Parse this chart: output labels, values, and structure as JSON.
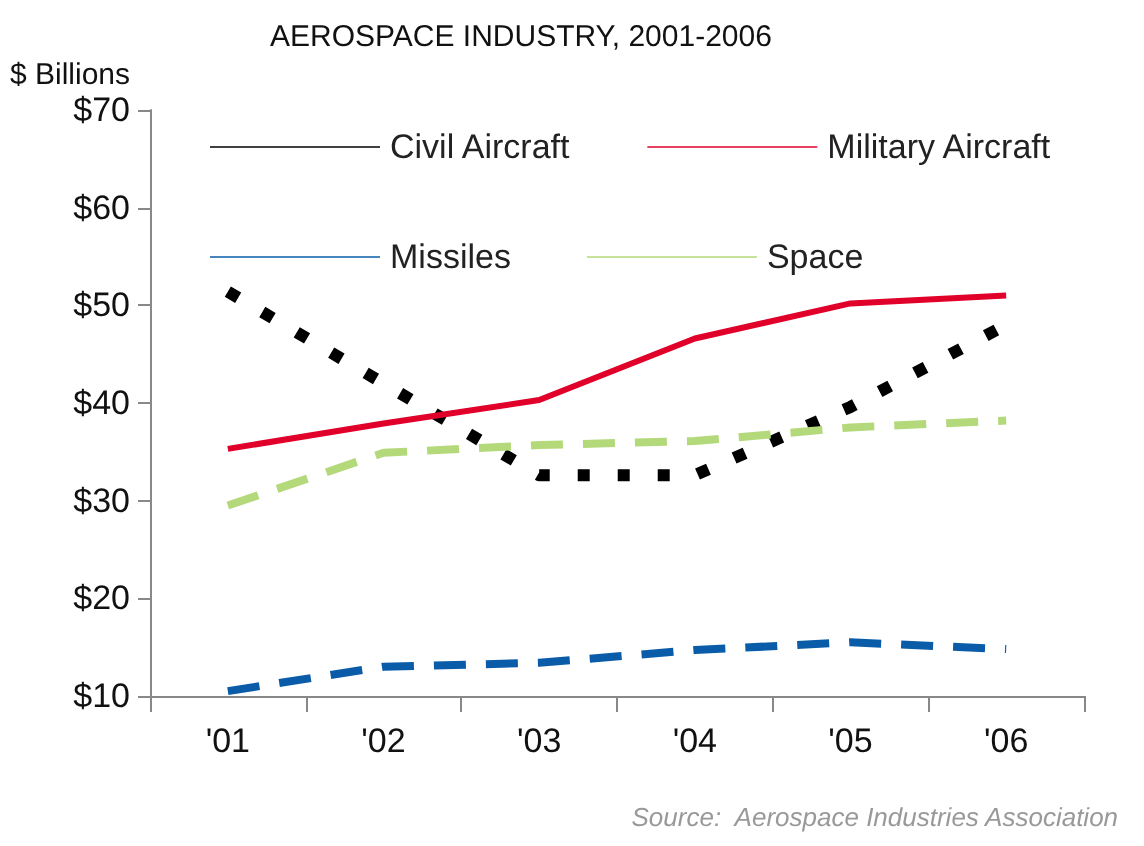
{
  "chart_data": {
    "type": "line",
    "title": "AEROSPACE INDUSTRY, 2001-2006",
    "ylabel": "$ Billions",
    "categories": [
      "'01",
      "'02",
      "'03",
      "'04",
      "'05",
      "'06"
    ],
    "series": [
      {
        "name": "Civil Aircraft",
        "color": "#000000",
        "line_style": "dotted",
        "values": [
          51.4,
          42,
          32.6,
          32.6,
          39.6,
          48
        ]
      },
      {
        "name": "Military Aircraft",
        "color": "#e0002a",
        "line_style": "solid",
        "values": [
          35.3,
          37.9,
          40.3,
          46.6,
          50.2,
          51
        ]
      },
      {
        "name": "Missiles",
        "color": "#0a5ca8",
        "line_style": "dashed",
        "values": [
          10.5,
          13,
          13.4,
          14.7,
          15.5,
          14.8
        ]
      },
      {
        "name": "Space",
        "color": "#b3d97a",
        "line_style": "dashed",
        "values": [
          29.5,
          34.9,
          35.7,
          36.1,
          37.5,
          38.2
        ]
      }
    ],
    "ylim": [
      10,
      70
    ],
    "yticks": [
      {
        "value": 10,
        "label": "$10"
      },
      {
        "value": 20,
        "label": "$20"
      },
      {
        "value": 30,
        "label": "$30"
      },
      {
        "value": 40,
        "label": "$40"
      },
      {
        "value": 50,
        "label": "$50"
      },
      {
        "value": 60,
        "label": "$60"
      },
      {
        "value": 70,
        "label": "$70"
      }
    ],
    "grid": false,
    "legend": "top",
    "marker": "none",
    "annotations": [
      "Source:  Aerospace Industries Association"
    ]
  }
}
